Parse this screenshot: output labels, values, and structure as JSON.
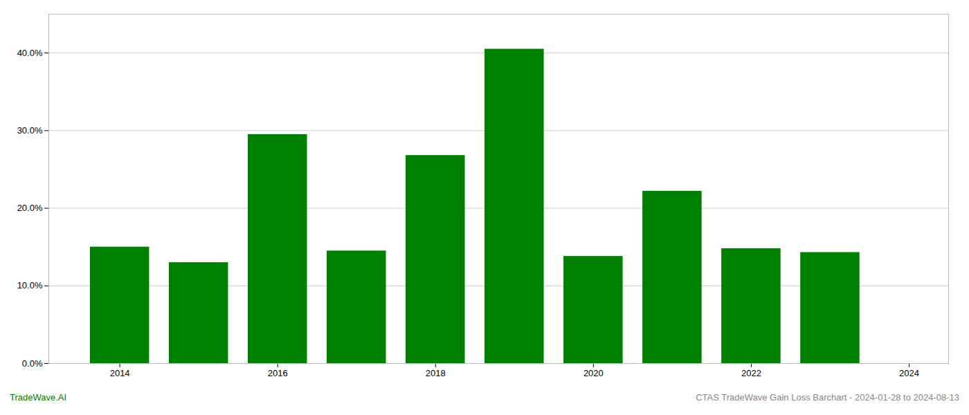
{
  "chart_data": {
    "type": "bar",
    "x": [
      2014,
      2015,
      2016,
      2017,
      2018,
      2019,
      2020,
      2021,
      2022,
      2023
    ],
    "values": [
      0.15,
      0.13,
      0.295,
      0.145,
      0.268,
      0.405,
      0.138,
      0.222,
      0.148,
      0.143
    ],
    "color": "#008000",
    "xlim": [
      2013.1,
      2024.5
    ],
    "xticks": [
      2014,
      2016,
      2018,
      2020,
      2022,
      2024
    ],
    "ylim": [
      0,
      0.45
    ],
    "yticks": [
      {
        "value": 0.0,
        "label": "0.0%"
      },
      {
        "value": 0.1,
        "label": "10.0%"
      },
      {
        "value": 0.2,
        "label": "20.0%"
      },
      {
        "value": 0.3,
        "label": "30.0%"
      },
      {
        "value": 0.4,
        "label": "40.0%"
      }
    ],
    "grid": true,
    "annotations": [
      "TradeWave.AI",
      "CTAS TradeWave Gain Loss Barchart - 2024-01-28 to 2024-08-13"
    ]
  }
}
